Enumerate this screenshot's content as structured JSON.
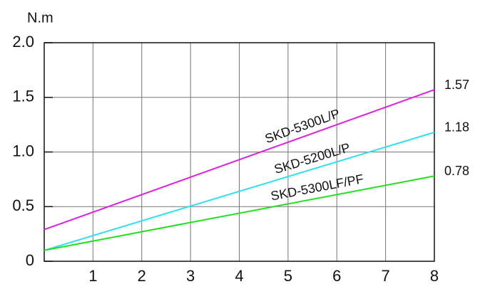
{
  "chart_data": {
    "type": "line",
    "y_label": "N.m",
    "x": [
      0,
      8
    ],
    "xlim": [
      0,
      8
    ],
    "xticks": [
      1,
      2,
      3,
      4,
      5,
      6,
      7,
      8
    ],
    "ylim": [
      0,
      2.0
    ],
    "yticks": [
      0,
      0.5,
      {
        "value": 1.0,
        "label": "1.0"
      },
      1.5,
      {
        "value": 2.0,
        "label": "2.0"
      }
    ],
    "grid": true,
    "series": [
      {
        "name": "SKD-5300L/P",
        "color": "#e020e0",
        "values": [
          0.29,
          1.57
        ]
      },
      {
        "name": "SKD-5200L/P",
        "color": "#30e0f0",
        "values": [
          0.1,
          1.18
        ]
      },
      {
        "name": "SKD-5300LF/PF",
        "color": "#20e020",
        "values": [
          0.1,
          0.78
        ]
      }
    ]
  }
}
